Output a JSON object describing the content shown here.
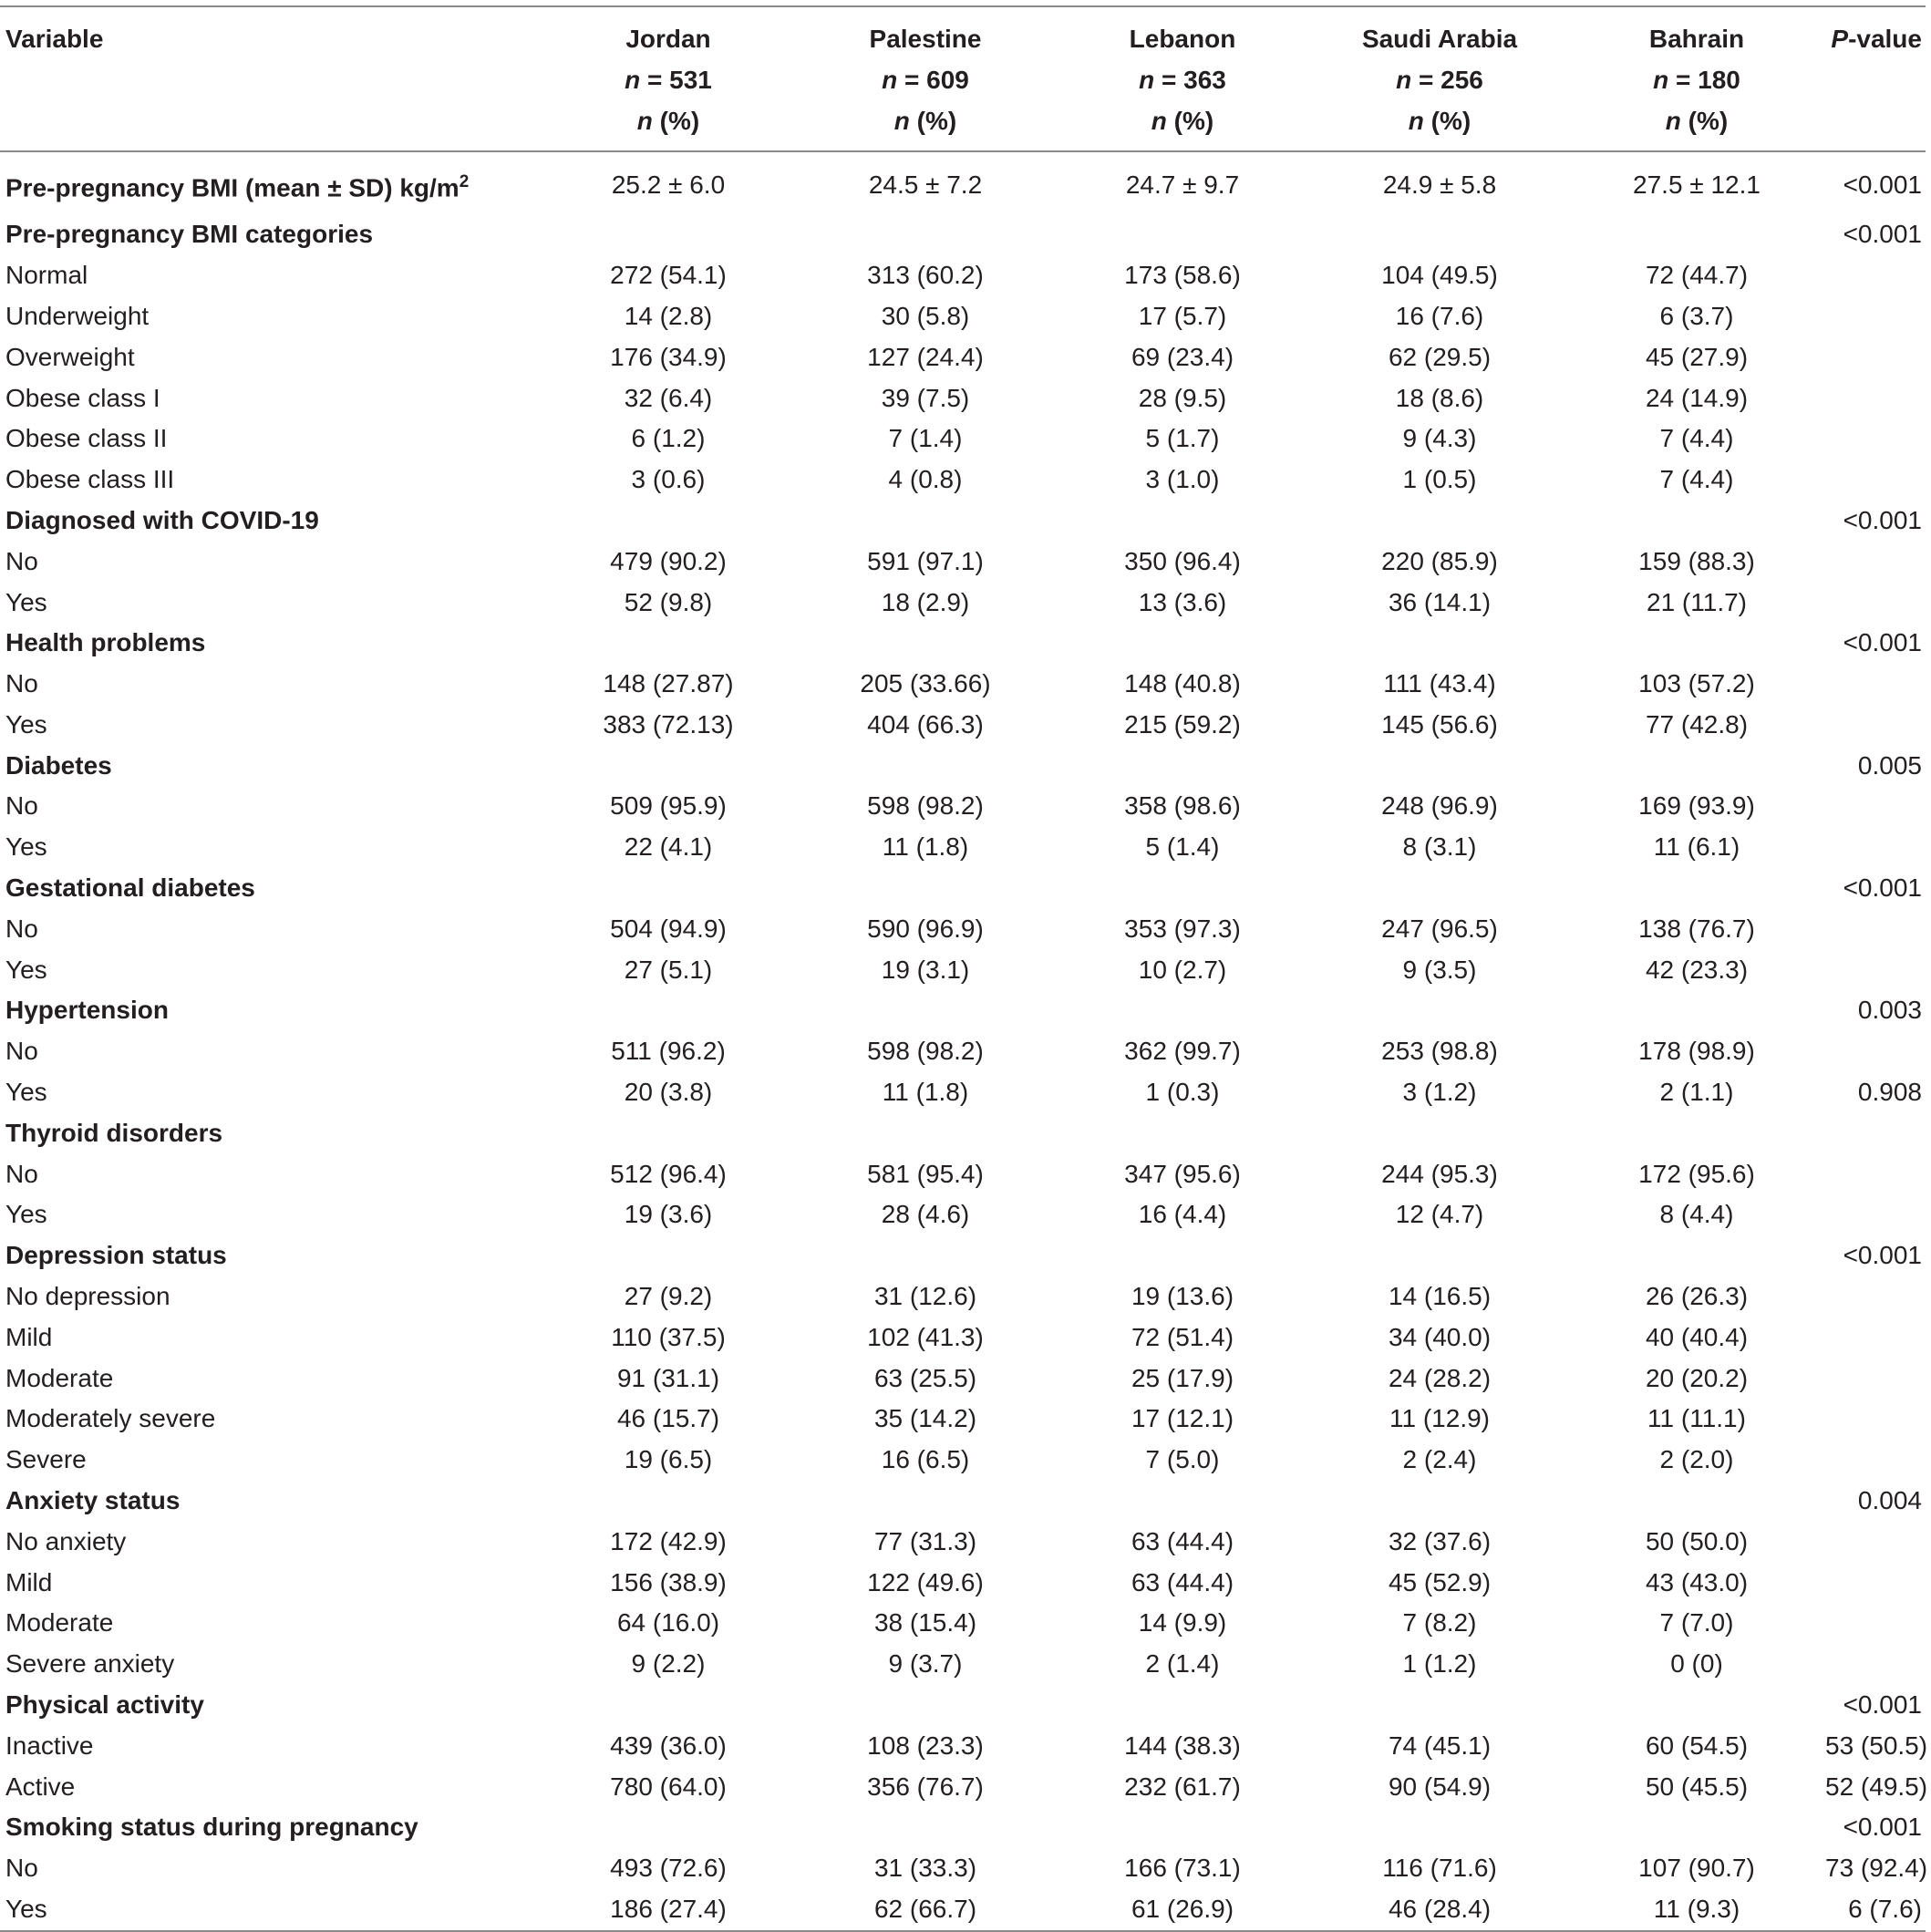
{
  "header": {
    "variable": "Variable",
    "countries": [
      {
        "name": "Jordan",
        "n": "531"
      },
      {
        "name": "Palestine",
        "n": "609"
      },
      {
        "name": "Lebanon",
        "n": "363"
      },
      {
        "name": "Saudi Arabia",
        "n": "256"
      },
      {
        "name": "Bahrain",
        "n": "180"
      }
    ],
    "n_prefix": "n",
    "eq": " = ",
    "n_pct": "n",
    "pct": " (%)",
    "p_italic": "P",
    "p_rest": "-value"
  },
  "rows": [
    {
      "type": "bmi",
      "label": "Pre-pregnancy BMI (mean ± SD) kg/m",
      "sup": "2",
      "values": [
        "25.2 ± 6.0",
        "24.5 ± 7.2",
        "24.7 ± 9.7",
        "24.9 ± 5.8",
        "27.5 ± 12.1"
      ],
      "p": "<0.001"
    },
    {
      "type": "section",
      "label": "Pre-pregnancy BMI categories",
      "values": [
        "",
        "",
        "",
        "",
        ""
      ],
      "p": "<0.001"
    },
    {
      "type": "row",
      "label": "Normal",
      "values": [
        "272 (54.1)",
        "313 (60.2)",
        "173 (58.6)",
        "104 (49.5)",
        "72 (44.7)"
      ],
      "p": ""
    },
    {
      "type": "row",
      "label": "Underweight",
      "values": [
        "14 (2.8)",
        "30 (5.8)",
        "17 (5.7)",
        "16 (7.6)",
        "6 (3.7)"
      ],
      "p": ""
    },
    {
      "type": "row",
      "label": "Overweight",
      "values": [
        "176 (34.9)",
        "127 (24.4)",
        "69 (23.4)",
        "62 (29.5)",
        "45 (27.9)"
      ],
      "p": ""
    },
    {
      "type": "row",
      "label": "Obese class I",
      "values": [
        "32 (6.4)",
        "39 (7.5)",
        "28 (9.5)",
        "18 (8.6)",
        "24 (14.9)"
      ],
      "p": ""
    },
    {
      "type": "row",
      "label": "Obese class II",
      "values": [
        "6 (1.2)",
        "7 (1.4)",
        "5 (1.7)",
        "9 (4.3)",
        "7 (4.4)"
      ],
      "p": ""
    },
    {
      "type": "row",
      "label": "Obese class III",
      "values": [
        "3 (0.6)",
        "4 (0.8)",
        "3 (1.0)",
        "1 (0.5)",
        "7 (4.4)"
      ],
      "p": ""
    },
    {
      "type": "section",
      "label": "Diagnosed with COVID-19",
      "values": [
        "",
        "",
        "",
        "",
        ""
      ],
      "p": "<0.001"
    },
    {
      "type": "row",
      "label": "No",
      "values": [
        "479 (90.2)",
        "591 (97.1)",
        "350 (96.4)",
        "220 (85.9)",
        "159 (88.3)"
      ],
      "p": ""
    },
    {
      "type": "row",
      "label": "Yes",
      "values": [
        "52 (9.8)",
        "18 (2.9)",
        "13 (3.6)",
        "36 (14.1)",
        "21 (11.7)"
      ],
      "p": ""
    },
    {
      "type": "section",
      "label": "Health problems",
      "values": [
        "",
        "",
        "",
        "",
        ""
      ],
      "p": "<0.001"
    },
    {
      "type": "row",
      "label": "No",
      "values": [
        "148 (27.87)",
        "205 (33.66)",
        "148 (40.8)",
        "111 (43.4)",
        "103 (57.2)"
      ],
      "p": ""
    },
    {
      "type": "row",
      "label": "Yes",
      "values": [
        "383 (72.13)",
        "404 (66.3)",
        "215 (59.2)",
        "145 (56.6)",
        "77 (42.8)"
      ],
      "p": ""
    },
    {
      "type": "section",
      "label": "Diabetes",
      "values": [
        "",
        "",
        "",
        "",
        ""
      ],
      "p": "0.005"
    },
    {
      "type": "row",
      "label": "No",
      "values": [
        "509 (95.9)",
        "598 (98.2)",
        "358 (98.6)",
        "248 (96.9)",
        "169 (93.9)"
      ],
      "p": ""
    },
    {
      "type": "row",
      "label": "Yes",
      "values": [
        "22 (4.1)",
        "11 (1.8)",
        "5 (1.4)",
        "8 (3.1)",
        "11 (6.1)"
      ],
      "p": ""
    },
    {
      "type": "section",
      "label": "Gestational diabetes",
      "values": [
        "",
        "",
        "",
        "",
        ""
      ],
      "p": "<0.001"
    },
    {
      "type": "row",
      "label": "No",
      "values": [
        "504 (94.9)",
        "590 (96.9)",
        "353 (97.3)",
        "247 (96.5)",
        "138 (76.7)"
      ],
      "p": ""
    },
    {
      "type": "row",
      "label": "Yes",
      "values": [
        "27 (5.1)",
        "19 (3.1)",
        "10 (2.7)",
        "9 (3.5)",
        "42 (23.3)"
      ],
      "p": ""
    },
    {
      "type": "section",
      "label": "Hypertension",
      "values": [
        "",
        "",
        "",
        "",
        ""
      ],
      "p": "0.003"
    },
    {
      "type": "row",
      "label": "No",
      "values": [
        "511 (96.2)",
        "598 (98.2)",
        "362 (99.7)",
        "253 (98.8)",
        "178 (98.9)"
      ],
      "p": ""
    },
    {
      "type": "row",
      "label": "Yes",
      "values": [
        "20 (3.8)",
        "11 (1.8)",
        "1 (0.3)",
        "3 (1.2)",
        "2 (1.1)"
      ],
      "p": "0.908"
    },
    {
      "type": "section",
      "label": "Thyroid disorders",
      "values": [
        "",
        "",
        "",
        "",
        ""
      ],
      "p": ""
    },
    {
      "type": "row",
      "label": "No",
      "values": [
        "512 (96.4)",
        "581 (95.4)",
        "347 (95.6)",
        "244 (95.3)",
        "172 (95.6)"
      ],
      "p": ""
    },
    {
      "type": "row",
      "label": "Yes",
      "values": [
        "19 (3.6)",
        "28 (4.6)",
        "16 (4.4)",
        "12 (4.7)",
        "8 (4.4)"
      ],
      "p": ""
    },
    {
      "type": "section",
      "label": "Depression status",
      "values": [
        "",
        "",
        "",
        "",
        ""
      ],
      "p": "<0.001"
    },
    {
      "type": "row",
      "label": "No depression",
      "values": [
        "27 (9.2)",
        "31 (12.6)",
        "19 (13.6)",
        "14 (16.5)",
        "26 (26.3)"
      ],
      "p": ""
    },
    {
      "type": "row",
      "label": "Mild",
      "values": [
        "110 (37.5)",
        "102 (41.3)",
        "72 (51.4)",
        "34 (40.0)",
        "40 (40.4)"
      ],
      "p": ""
    },
    {
      "type": "row",
      "label": "Moderate",
      "values": [
        "91 (31.1)",
        "63 (25.5)",
        "25 (17.9)",
        "24 (28.2)",
        "20 (20.2)"
      ],
      "p": ""
    },
    {
      "type": "row",
      "label": "Moderately severe",
      "values": [
        "46 (15.7)",
        "35 (14.2)",
        "17 (12.1)",
        "11 (12.9)",
        "11 (11.1)"
      ],
      "p": ""
    },
    {
      "type": "row",
      "label": "Severe",
      "values": [
        "19 (6.5)",
        "16 (6.5)",
        "7 (5.0)",
        "2 (2.4)",
        "2 (2.0)"
      ],
      "p": ""
    },
    {
      "type": "section",
      "label": "Anxiety status",
      "values": [
        "",
        "",
        "",
        "",
        ""
      ],
      "p": "0.004"
    },
    {
      "type": "row",
      "label": "No anxiety",
      "values": [
        "172 (42.9)",
        "77 (31.3)",
        "63 (44.4)",
        "32 (37.6)",
        "50 (50.0)"
      ],
      "p": ""
    },
    {
      "type": "row",
      "label": "Mild",
      "values": [
        "156 (38.9)",
        "122 (49.6)",
        "63 (44.4)",
        "45 (52.9)",
        "43 (43.0)"
      ],
      "p": ""
    },
    {
      "type": "row",
      "label": "Moderate",
      "values": [
        "64 (16.0)",
        "38 (15.4)",
        "14 (9.9)",
        "7 (8.2)",
        "7 (7.0)"
      ],
      "p": ""
    },
    {
      "type": "row",
      "label": "Severe anxiety",
      "values": [
        "9 (2.2)",
        "9 (3.7)",
        "2 (1.4)",
        "1 (1.2)",
        "0 (0)"
      ],
      "p": ""
    },
    {
      "type": "section",
      "label": "Physical activity",
      "values": [
        "",
        "",
        "",
        "",
        ""
      ],
      "p": "<0.001"
    },
    {
      "type": "row",
      "label": "Inactive",
      "values": [
        "439 (36.0)",
        "108 (23.3)",
        "144 (38.3)",
        "74 (45.1)",
        "60 (54.5)"
      ],
      "p": "53 (50.5)"
    },
    {
      "type": "row",
      "label": "Active",
      "values": [
        "780 (64.0)",
        "356 (76.7)",
        "232 (61.7)",
        "90 (54.9)",
        "50 (45.5)"
      ],
      "p": "52 (49.5)"
    },
    {
      "type": "section",
      "label": "Smoking status during pregnancy",
      "values": [
        "",
        "",
        "",
        "",
        ""
      ],
      "p": "<0.001"
    },
    {
      "type": "row",
      "label": "No",
      "values": [
        "493 (72.6)",
        "31 (33.3)",
        "166 (73.1)",
        "116 (71.6)",
        "107 (90.7)"
      ],
      "p": "73 (92.4)"
    },
    {
      "type": "row",
      "label": "Yes",
      "values": [
        "186 (27.4)",
        "62 (66.7)",
        "61 (26.9)",
        "46 (28.4)",
        "11 (9.3)"
      ],
      "p": "6 (7.6)"
    }
  ]
}
